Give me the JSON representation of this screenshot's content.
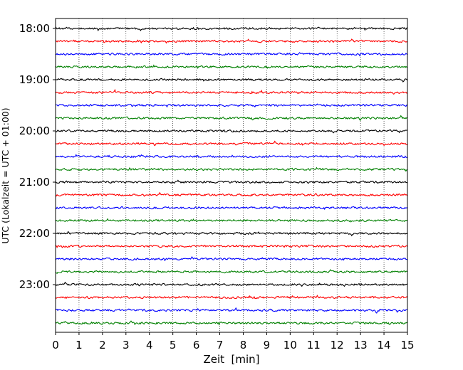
{
  "chart_data": {
    "type": "line",
    "title": "",
    "xlabel": "Zeit  [min]",
    "ylabel": "UTC (Lokalzeit = UTC + 01:00)",
    "xlim": [
      0,
      15
    ],
    "x_ticks": [
      0,
      1,
      2,
      3,
      4,
      5,
      6,
      7,
      8,
      9,
      10,
      11,
      12,
      13,
      14,
      15
    ],
    "x_tick_labels": [
      "0",
      "1",
      "2",
      "3",
      "4",
      "5",
      "6",
      "7",
      "8",
      "9",
      "10",
      "11",
      "12",
      "13",
      "14",
      "15"
    ],
    "y_tick_labels": [
      "18:00",
      "19:00",
      "20:00",
      "21:00",
      "22:00",
      "23:00"
    ],
    "grid": {
      "x": true,
      "style": "dotted"
    },
    "trace_colors": [
      "#000000",
      "#ff0000",
      "#0000ff",
      "#008000"
    ],
    "traces": [
      "18:00",
      "18:15",
      "18:30",
      "18:45",
      "19:00",
      "19:15",
      "19:30",
      "19:45",
      "20:00",
      "20:15",
      "20:30",
      "20:45",
      "21:00",
      "21:15",
      "21:30",
      "21:45",
      "22:00",
      "22:15",
      "22:30",
      "22:45",
      "23:00",
      "23:15",
      "23:30",
      "23:45"
    ]
  }
}
